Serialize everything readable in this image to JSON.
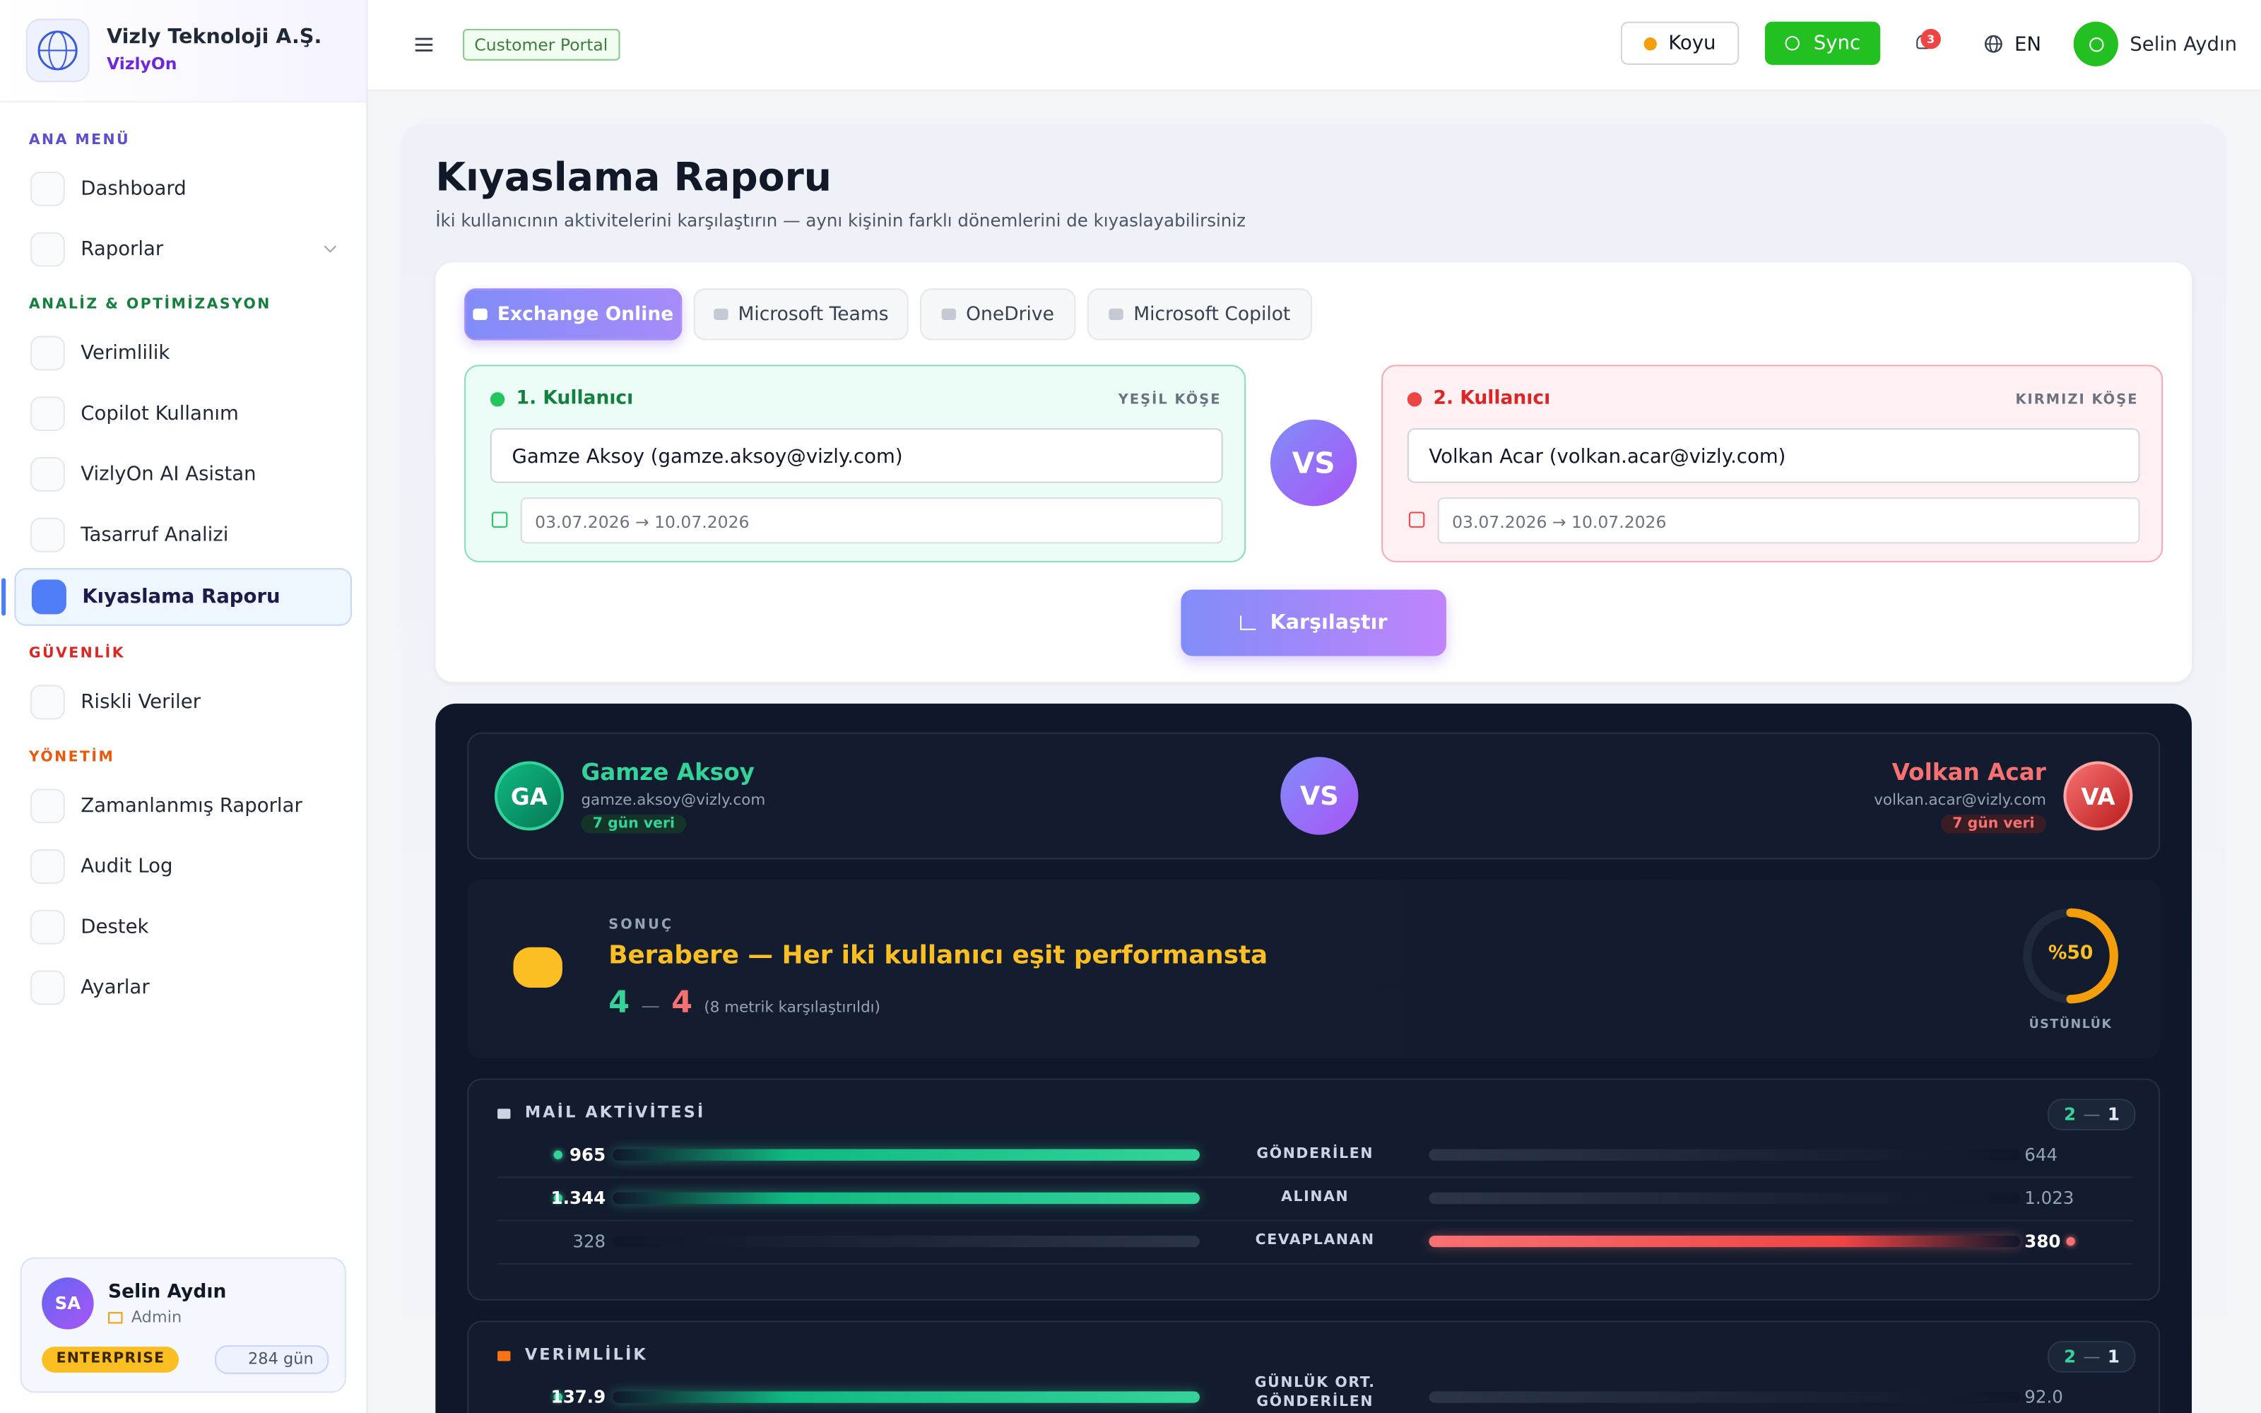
{
  "sidebar": {
    "company": "Vizly Teknoloji A.Ş.",
    "product": "VizlyOn",
    "sections": [
      {
        "title": "ANA MENÜ",
        "color": "#5b4fcf",
        "items": [
          {
            "label": "Dashboard",
            "icon": "#8b5cf6"
          },
          {
            "label": "Raporlar",
            "icon": "#6366f1",
            "expandable": true
          }
        ]
      },
      {
        "title": "ANALİZ & OPTİMİZASYON",
        "color": "#15803d",
        "items": [
          {
            "label": "Verimlilik",
            "icon": "#22c55e"
          },
          {
            "label": "Copilot Kullanım",
            "icon": "#f59e0b"
          },
          {
            "label": "VizlyOn AI Asistan",
            "icon": "#8b5cf6"
          },
          {
            "label": "Tasarruf Analizi",
            "icon": "#10b981"
          },
          {
            "label": "Kıyaslama Raporu",
            "icon": "#ffffff",
            "active": true
          }
        ]
      },
      {
        "title": "GÜVENLİK",
        "color": "#dc2626",
        "items": [
          {
            "label": "Riskli Veriler",
            "icon": "#ef4444"
          }
        ]
      },
      {
        "title": "YÖNETİM",
        "color": "#ea580c",
        "items": [
          {
            "label": "Zamanlanmış Raporlar",
            "icon": "#06b6d4"
          },
          {
            "label": "Audit Log",
            "icon": "#9ca3af"
          },
          {
            "label": "Destek",
            "icon": "#14b8a6"
          },
          {
            "label": "Ayarlar",
            "icon": "#9ca3af"
          }
        ]
      }
    ],
    "user": {
      "initials": "SA",
      "name": "Selin Aydın",
      "role": "Admin",
      "plan": "ENTERPRISE",
      "days": "284 gün"
    }
  },
  "topbar": {
    "badge": "Customer Portal",
    "theme": "Koyu",
    "sync": "Sync",
    "notifications": "3",
    "language": "EN",
    "user": "Selin Aydın"
  },
  "page": {
    "title": "Kıyaslama Raporu",
    "subtitle": "İki kullanıcının aktivitelerini karşılaştırın — aynı kişinin farklı dönemlerini de kıyaslayabilirsiniz",
    "tabs": [
      {
        "label": "Exchange Online",
        "active": true
      },
      {
        "label": "Microsoft Teams"
      },
      {
        "label": "OneDrive"
      },
      {
        "label": "Microsoft Copilot"
      }
    ],
    "user1": {
      "label": "1. Kullanıcı",
      "corner": "YEŞİL KÖŞE",
      "select": "Gamze Aksoy (gamze.aksoy@vizly.com)",
      "dates": "03.07.2026 → 10.07.2026"
    },
    "vs": "VS",
    "user2": {
      "label": "2. Kullanıcı",
      "corner": "KIRMIZI KÖŞE",
      "select": "Volkan Acar (volkan.acar@vizly.com)",
      "dates": "03.07.2026 → 10.07.2026"
    },
    "compare_button": "Karşılaştır"
  },
  "result": {
    "left": {
      "initials": "GA",
      "name": "Gamze Aksoy",
      "email": "gamze.aksoy@vizly.com",
      "days": "7 gün veri"
    },
    "vs": "VS",
    "right": {
      "initials": "VA",
      "name": "Volkan Acar",
      "email": "volkan.acar@vizly.com",
      "days": "7 gün veri"
    },
    "outcome_label": "SONUÇ",
    "outcome": "Berabere — Her iki kullanıcı eşit performansta",
    "score_left": "4",
    "score_sep": "—",
    "score_right": "4",
    "score_note": "(8 metrik karşılaştırıldı)",
    "superiority": "%50",
    "superiority_label": "ÜSTÜNLÜK",
    "groups": [
      {
        "title": "MAİL AKTİVİTESİ",
        "score_left": "2",
        "score_right": "1",
        "metrics": [
          {
            "left": "965",
            "label": "GÖNDERİLEN",
            "right": "644",
            "winner": "left"
          },
          {
            "left": "1.344",
            "label": "ALINAN",
            "right": "1.023",
            "winner": "left"
          },
          {
            "left": "328",
            "label": "CEVAPLANAN",
            "right": "380",
            "winner": "right"
          }
        ]
      },
      {
        "title": "VERİMLİLİK",
        "score_left": "2",
        "score_right": "1",
        "metrics": [
          {
            "left": "137.9",
            "label": "GÜNLÜK ORT. GÖNDERİLEN",
            "right": "92.0",
            "winner": "left"
          }
        ]
      }
    ]
  }
}
